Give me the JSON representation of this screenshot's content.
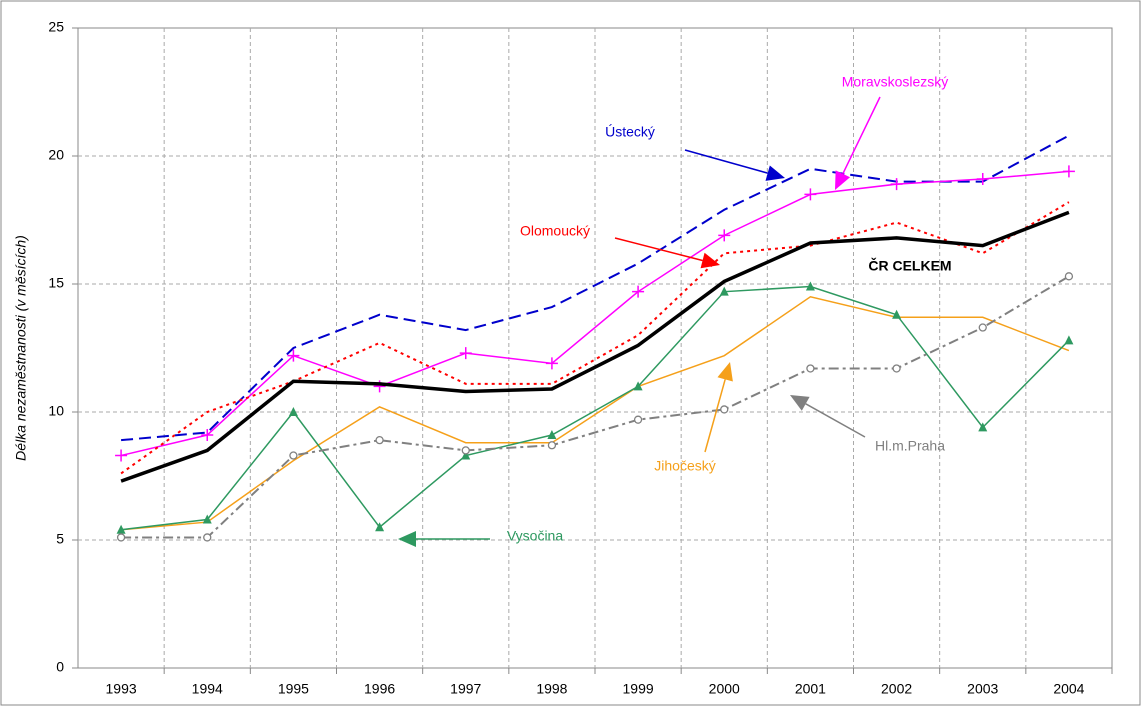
{
  "chart_data": {
    "type": "line",
    "y_label": "Délka nezaměstnanosti (v měsících)",
    "categories": [
      "1993",
      "1994",
      "1995",
      "1996",
      "1997",
      "1998",
      "1999",
      "2000",
      "2001",
      "2002",
      "2003",
      "2004"
    ],
    "ylim": [
      0,
      25
    ],
    "yticks": [
      0,
      5,
      10,
      15,
      20,
      25
    ],
    "grid": true,
    "series": [
      {
        "name": "Ústecký",
        "color": "#0000cc",
        "line_style": "dashed",
        "width": 2,
        "marker": "none",
        "values": [
          8.9,
          9.2,
          12.5,
          13.8,
          13.2,
          14.1,
          15.8,
          17.9,
          19.5,
          19.0,
          19.0,
          20.8
        ]
      },
      {
        "name": "Moravskoslezský",
        "color": "#ff00ff",
        "line_style": "solid",
        "width": 1.5,
        "marker": "plus",
        "values": [
          8.3,
          9.1,
          12.2,
          11.0,
          12.3,
          11.9,
          14.7,
          16.9,
          18.5,
          18.9,
          19.1,
          19.4
        ]
      },
      {
        "name": "Olomoucký",
        "color": "#ff0000",
        "line_style": "dotted",
        "width": 2,
        "marker": "none",
        "values": [
          7.6,
          10.0,
          11.2,
          12.7,
          11.1,
          11.1,
          13.0,
          16.2,
          16.5,
          17.4,
          16.2,
          18.2
        ]
      },
      {
        "name": "ČR CELKEM",
        "color": "#000000",
        "line_style": "solid",
        "width": 3.5,
        "marker": "none",
        "values": [
          7.3,
          8.5,
          11.2,
          11.1,
          10.8,
          10.9,
          12.6,
          15.1,
          16.6,
          16.8,
          16.5,
          17.8
        ]
      },
      {
        "name": "Jihočeský",
        "color": "#f5a01a",
        "line_style": "solid",
        "width": 1.5,
        "marker": "none",
        "values": [
          5.4,
          5.7,
          8.1,
          10.2,
          8.8,
          8.8,
          11.0,
          12.2,
          14.5,
          13.7,
          13.7,
          12.4
        ]
      },
      {
        "name": "Vysočina",
        "color": "#2e9960",
        "line_style": "solid",
        "width": 1.5,
        "marker": "triangle",
        "values": [
          5.4,
          5.8,
          10.0,
          5.5,
          8.3,
          9.1,
          11.0,
          14.7,
          14.9,
          13.8,
          9.4,
          12.8
        ]
      },
      {
        "name": "Hl.m.Praha",
        "color": "#808080",
        "line_style": "dashdot",
        "width": 2,
        "marker": "circle",
        "values": [
          5.1,
          5.1,
          8.3,
          8.9,
          8.5,
          8.7,
          9.7,
          10.1,
          11.7,
          11.7,
          13.3,
          15.3
        ]
      }
    ]
  }
}
